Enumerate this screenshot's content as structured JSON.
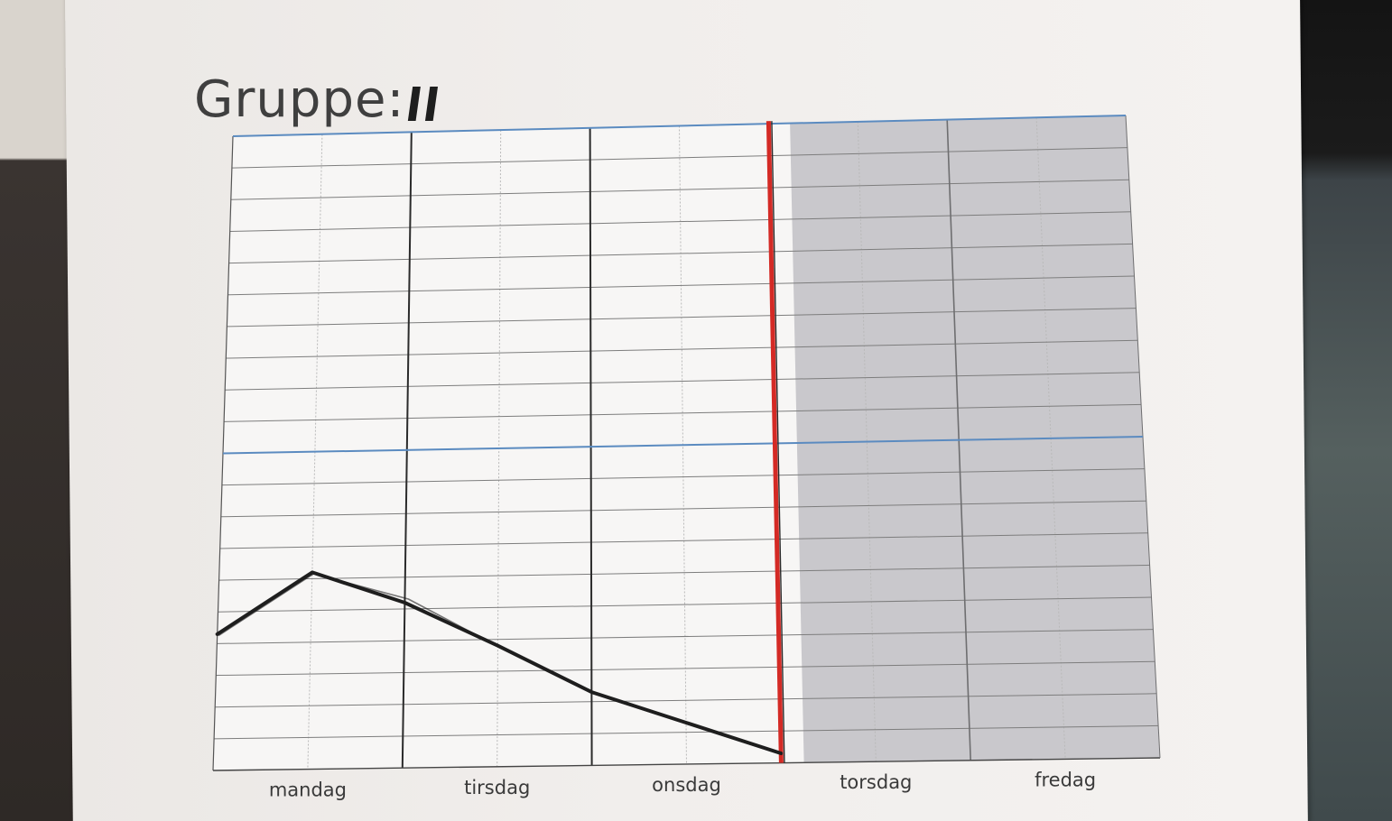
{
  "photo": {
    "subject": "printed paper chart with hand-drawn line"
  },
  "header": {
    "title_prefix": "Gruppe:",
    "title_handwritten": "ll"
  },
  "chart_data": {
    "type": "line",
    "categories": [
      "mandag",
      "tirsdag",
      "onsdag",
      "torsdag",
      "fredag"
    ],
    "x": [
      0,
      0.5,
      1,
      1.5,
      2,
      2.5,
      3
    ],
    "series": [
      {
        "values": [
          4.3,
          6.2,
          5.2,
          3.8,
          2.3,
          1.3,
          0.3
        ]
      }
    ],
    "ylim": [
      0,
      10
    ],
    "xlim": [
      0,
      5
    ],
    "grid": true,
    "rows_per_half": 10,
    "marker_line_day_boundary": 3,
    "shaded_days": [
      "torsdag",
      "fredag"
    ],
    "colors": {
      "line": "#1e1e1e",
      "marker": "#d42a25",
      "blue_rules": "#5b8bc0",
      "shade": "#c9c8cc"
    }
  }
}
